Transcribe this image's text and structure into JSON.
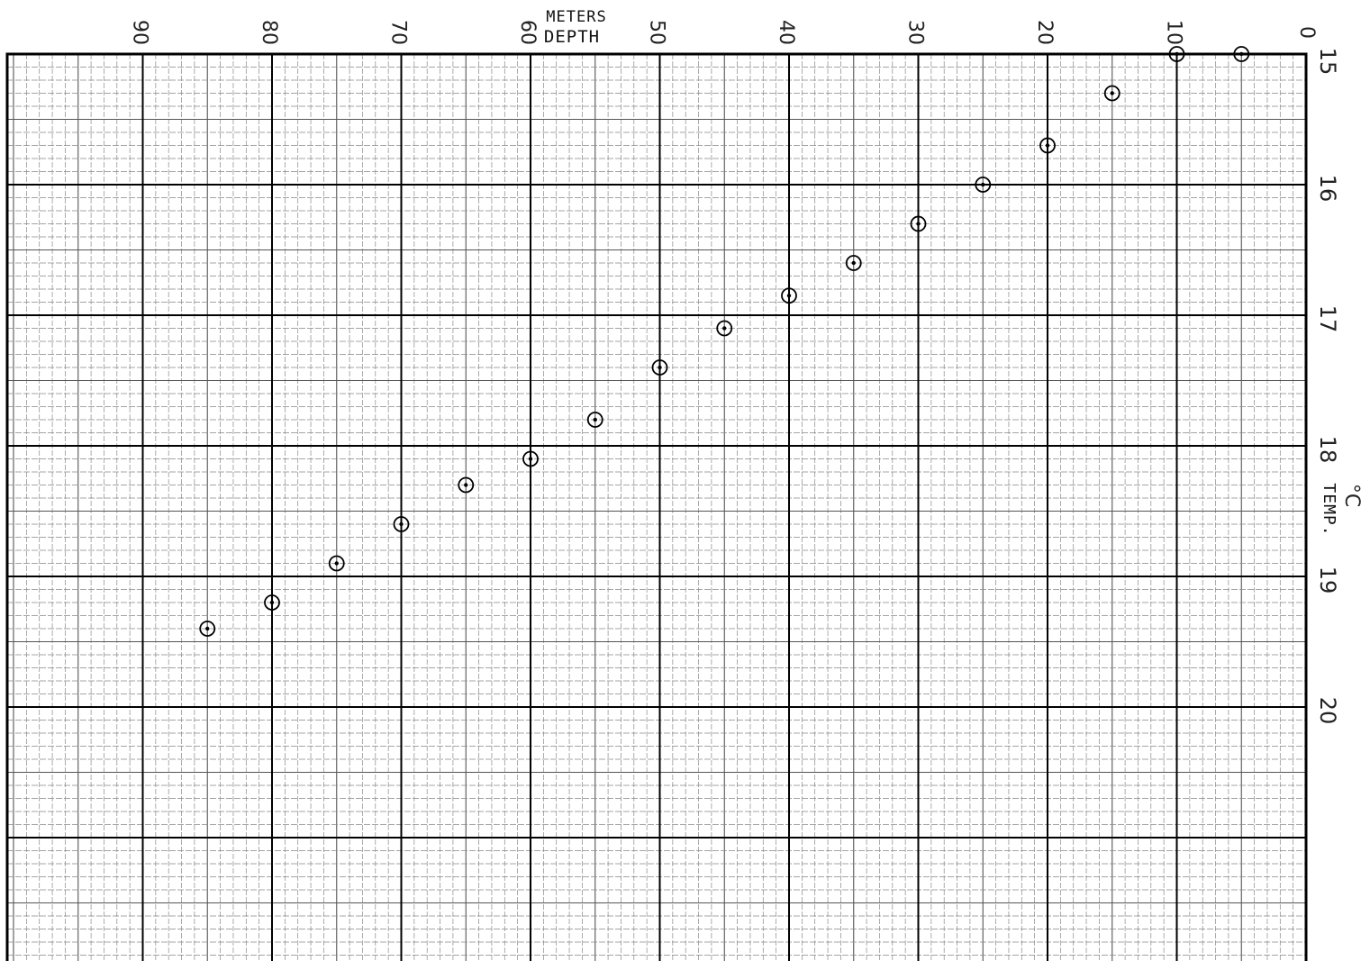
{
  "chart_data": {
    "type": "scatter",
    "title": "",
    "xlabel_top": "METERS",
    "xlabel": "DEPTH",
    "ylabel": "TEMP.",
    "ylabel_unit": "°C",
    "xlim": [
      0,
      100
    ],
    "ylim": [
      15,
      22
    ],
    "x_reversed": true,
    "x_ticks": [
      {
        "value": 0,
        "label": "0"
      },
      {
        "value": 10,
        "label": "10"
      },
      {
        "value": 20,
        "label": "20"
      },
      {
        "value": 30,
        "label": "30"
      },
      {
        "value": 40,
        "label": "40"
      },
      {
        "value": 50,
        "label": "50"
      },
      {
        "value": 60,
        "label": "60"
      },
      {
        "value": 70,
        "label": "70"
      },
      {
        "value": 80,
        "label": "80"
      },
      {
        "value": 90,
        "label": "90"
      }
    ],
    "y_ticks": [
      {
        "value": 15,
        "label": "15"
      },
      {
        "value": 16,
        "label": "16"
      },
      {
        "value": 17,
        "label": "17"
      },
      {
        "value": 18,
        "label": "18"
      },
      {
        "value": 19,
        "label": "19"
      },
      {
        "value": 20,
        "label": "20"
      }
    ],
    "grid": true,
    "series": [
      {
        "points": [
          {
            "x": 5,
            "y": 15.0
          },
          {
            "x": 10,
            "y": 15.0
          },
          {
            "x": 15,
            "y": 15.3
          },
          {
            "x": 20,
            "y": 15.7
          },
          {
            "x": 25,
            "y": 16.0
          },
          {
            "x": 30,
            "y": 16.3
          },
          {
            "x": 35,
            "y": 16.6
          },
          {
            "x": 40,
            "y": 16.85
          },
          {
            "x": 45,
            "y": 17.1
          },
          {
            "x": 50,
            "y": 17.4
          },
          {
            "x": 55,
            "y": 17.8
          },
          {
            "x": 60,
            "y": 18.1
          },
          {
            "x": 65,
            "y": 18.3
          },
          {
            "x": 70,
            "y": 18.6
          },
          {
            "x": 75,
            "y": 18.9
          },
          {
            "x": 80,
            "y": 19.2
          },
          {
            "x": 85,
            "y": 19.4
          }
        ]
      }
    ]
  }
}
